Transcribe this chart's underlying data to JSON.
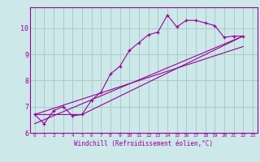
{
  "xlabel": "Windchill (Refroidissement éolien,°C)",
  "ylabel": "",
  "bg_color": "#cce8e8",
  "line_color": "#990099",
  "grid_color": "#aacccc",
  "xlim": [
    -0.5,
    23.5
  ],
  "ylim": [
    6.0,
    10.8
  ],
  "yticks": [
    6,
    7,
    8,
    9,
    10
  ],
  "xticks": [
    0,
    1,
    2,
    3,
    4,
    5,
    6,
    7,
    8,
    9,
    10,
    11,
    12,
    13,
    14,
    15,
    16,
    17,
    18,
    19,
    20,
    21,
    22,
    23
  ],
  "series": [
    [
      0,
      6.7
    ],
    [
      1,
      6.35
    ],
    [
      2,
      6.85
    ],
    [
      3,
      7.0
    ],
    [
      4,
      6.65
    ],
    [
      5,
      6.7
    ],
    [
      6,
      7.25
    ],
    [
      7,
      7.55
    ],
    [
      8,
      8.25
    ],
    [
      9,
      8.55
    ],
    [
      10,
      9.15
    ],
    [
      11,
      9.45
    ],
    [
      12,
      9.75
    ],
    [
      13,
      9.85
    ],
    [
      14,
      10.5
    ],
    [
      15,
      10.05
    ],
    [
      16,
      10.3
    ],
    [
      17,
      10.3
    ],
    [
      18,
      10.2
    ],
    [
      19,
      10.1
    ],
    [
      20,
      9.65
    ],
    [
      21,
      9.7
    ],
    [
      22,
      9.7
    ]
  ],
  "line2": [
    [
      0,
      6.7
    ],
    [
      5,
      6.7
    ],
    [
      22,
      9.7
    ]
  ],
  "line3": [
    [
      0,
      6.7
    ],
    [
      22,
      9.3
    ]
  ],
  "line4": [
    [
      0,
      6.35
    ],
    [
      22,
      9.7
    ]
  ]
}
